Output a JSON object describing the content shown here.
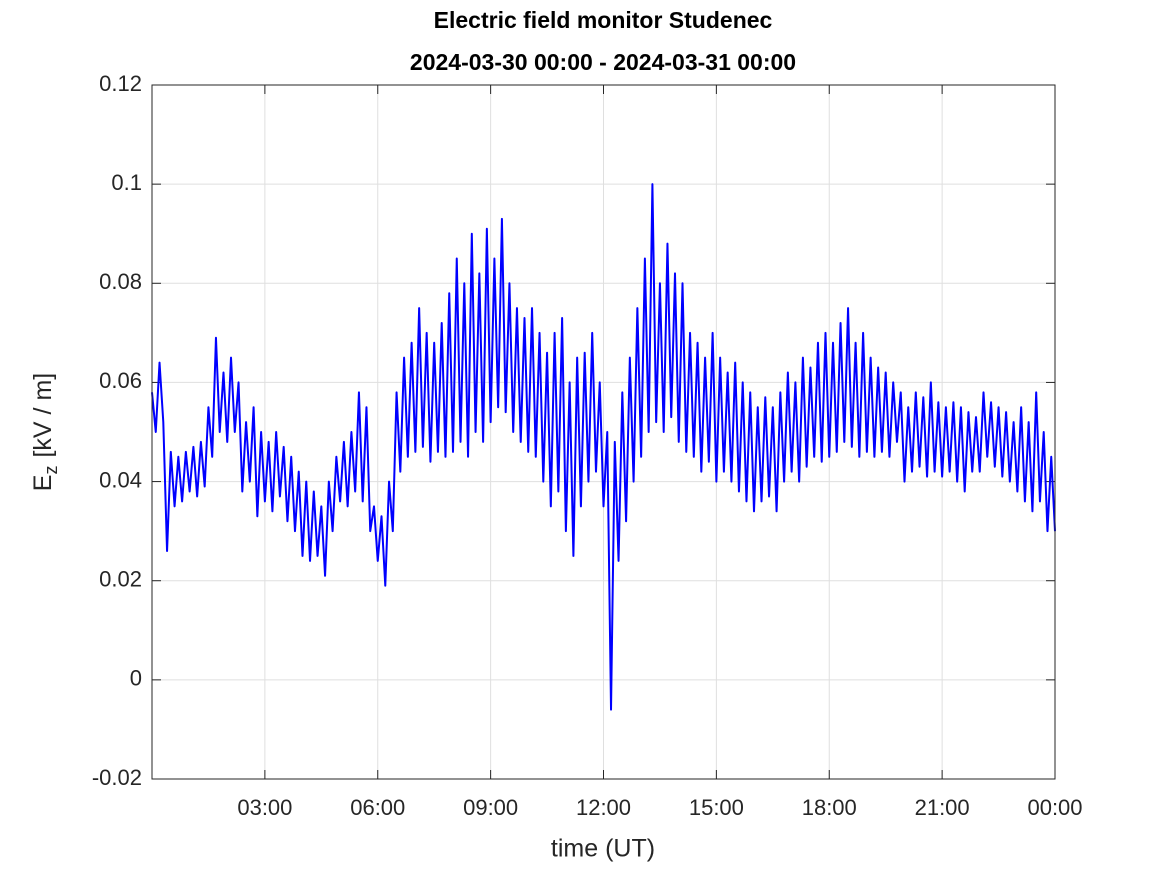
{
  "chart_data": {
    "type": "line",
    "title": "Electric field monitor Studenec",
    "subtitle": "2024-03-30 00:00 - 2024-03-31 00:00",
    "xlabel": "time (UT)",
    "ylabel": [
      "E",
      "z",
      "[kV / m]"
    ],
    "xlim": [
      0,
      24
    ],
    "xticks": [
      {
        "value": 3,
        "label": "03:00"
      },
      {
        "value": 6,
        "label": "06:00"
      },
      {
        "value": 9,
        "label": "09:00"
      },
      {
        "value": 12,
        "label": "12:00"
      },
      {
        "value": 15,
        "label": "15:00"
      },
      {
        "value": 18,
        "label": "18:00"
      },
      {
        "value": 21,
        "label": "21:00"
      },
      {
        "value": 24,
        "label": "00:00"
      }
    ],
    "ylim": [
      -0.02,
      0.12
    ],
    "yticks": [
      -0.02,
      0,
      0.02,
      0.04,
      0.06,
      0.08,
      0.1,
      0.12
    ],
    "grid": true,
    "x": [
      0,
      0.1,
      0.2,
      0.3,
      0.4,
      0.5,
      0.6,
      0.7,
      0.8,
      0.9,
      1,
      1.1,
      1.2,
      1.3,
      1.4,
      1.5,
      1.6,
      1.7,
      1.8,
      1.9,
      2,
      2.1,
      2.2,
      2.3,
      2.4,
      2.5,
      2.6,
      2.7,
      2.8,
      2.9,
      3,
      3.1,
      3.2,
      3.3,
      3.4,
      3.5,
      3.6,
      3.7,
      3.8,
      3.9,
      4,
      4.1,
      4.2,
      4.3,
      4.4,
      4.5,
      4.6,
      4.7,
      4.8,
      4.9,
      5,
      5.1,
      5.2,
      5.3,
      5.4,
      5.5,
      5.6,
      5.7,
      5.8,
      5.9,
      6,
      6.1,
      6.2,
      6.3,
      6.4,
      6.5,
      6.6,
      6.7,
      6.8,
      6.9,
      7,
      7.1,
      7.2,
      7.3,
      7.4,
      7.5,
      7.6,
      7.7,
      7.8,
      7.9,
      8,
      8.1,
      8.2,
      8.3,
      8.4,
      8.5,
      8.6,
      8.7,
      8.8,
      8.9,
      9,
      9.1,
      9.2,
      9.3,
      9.4,
      9.5,
      9.6,
      9.7,
      9.8,
      9.9,
      10,
      10.1,
      10.2,
      10.3,
      10.4,
      10.5,
      10.6,
      10.7,
      10.8,
      10.9,
      11,
      11.1,
      11.2,
      11.3,
      11.4,
      11.5,
      11.6,
      11.7,
      11.8,
      11.9,
      12,
      12.1,
      12.2,
      12.3,
      12.4,
      12.5,
      12.6,
      12.7,
      12.8,
      12.9,
      13,
      13.1,
      13.2,
      13.3,
      13.4,
      13.5,
      13.6,
      13.7,
      13.8,
      13.9,
      14,
      14.1,
      14.2,
      14.3,
      14.4,
      14.5,
      14.6,
      14.7,
      14.8,
      14.9,
      15,
      15.1,
      15.2,
      15.3,
      15.4,
      15.5,
      15.6,
      15.7,
      15.8,
      15.9,
      16,
      16.1,
      16.2,
      16.3,
      16.4,
      16.5,
      16.6,
      16.7,
      16.8,
      16.9,
      17,
      17.1,
      17.2,
      17.3,
      17.4,
      17.5,
      17.6,
      17.7,
      17.8,
      17.9,
      18,
      18.1,
      18.2,
      18.3,
      18.4,
      18.5,
      18.6,
      18.7,
      18.8,
      18.9,
      19,
      19.1,
      19.2,
      19.3,
      19.4,
      19.5,
      19.6,
      19.7,
      19.8,
      19.9,
      20,
      20.1,
      20.2,
      20.3,
      20.4,
      20.5,
      20.6,
      20.7,
      20.8,
      20.9,
      21,
      21.1,
      21.2,
      21.3,
      21.4,
      21.5,
      21.6,
      21.7,
      21.8,
      21.9,
      22,
      22.1,
      22.2,
      22.3,
      22.4,
      22.5,
      22.6,
      22.7,
      22.8,
      22.9,
      23,
      23.1,
      23.2,
      23.3,
      23.4,
      23.5,
      23.6,
      23.7,
      23.8,
      23.9,
      24
    ],
    "series": [
      {
        "color": "#0000ff",
        "values": [
          0.058,
          0.05,
          0.064,
          0.052,
          0.026,
          0.046,
          0.035,
          0.045,
          0.036,
          0.046,
          0.038,
          0.047,
          0.037,
          0.048,
          0.039,
          0.055,
          0.045,
          0.069,
          0.05,
          0.062,
          0.048,
          0.065,
          0.05,
          0.06,
          0.038,
          0.052,
          0.04,
          0.055,
          0.033,
          0.05,
          0.036,
          0.048,
          0.034,
          0.05,
          0.037,
          0.047,
          0.032,
          0.045,
          0.03,
          0.042,
          0.025,
          0.04,
          0.024,
          0.038,
          0.025,
          0.035,
          0.021,
          0.04,
          0.03,
          0.045,
          0.036,
          0.048,
          0.035,
          0.05,
          0.038,
          0.058,
          0.036,
          0.055,
          0.03,
          0.035,
          0.024,
          0.033,
          0.019,
          0.04,
          0.03,
          0.058,
          0.042,
          0.065,
          0.045,
          0.068,
          0.046,
          0.075,
          0.047,
          0.07,
          0.044,
          0.068,
          0.046,
          0.072,
          0.045,
          0.078,
          0.046,
          0.085,
          0.048,
          0.08,
          0.045,
          0.09,
          0.05,
          0.082,
          0.048,
          0.091,
          0.052,
          0.085,
          0.055,
          0.093,
          0.054,
          0.08,
          0.05,
          0.075,
          0.048,
          0.073,
          0.046,
          0.075,
          0.045,
          0.07,
          0.04,
          0.066,
          0.035,
          0.07,
          0.038,
          0.073,
          0.03,
          0.06,
          0.025,
          0.065,
          0.035,
          0.066,
          0.04,
          0.07,
          0.042,
          0.06,
          0.035,
          0.05,
          -0.006,
          0.048,
          0.024,
          0.058,
          0.032,
          0.065,
          0.04,
          0.075,
          0.045,
          0.085,
          0.05,
          0.1,
          0.052,
          0.08,
          0.05,
          0.088,
          0.053,
          0.082,
          0.048,
          0.08,
          0.046,
          0.07,
          0.045,
          0.068,
          0.042,
          0.065,
          0.044,
          0.07,
          0.04,
          0.065,
          0.042,
          0.062,
          0.04,
          0.064,
          0.038,
          0.06,
          0.036,
          0.058,
          0.034,
          0.055,
          0.036,
          0.057,
          0.037,
          0.055,
          0.034,
          0.058,
          0.04,
          0.062,
          0.042,
          0.06,
          0.04,
          0.065,
          0.043,
          0.063,
          0.045,
          0.068,
          0.044,
          0.07,
          0.045,
          0.068,
          0.046,
          0.072,
          0.048,
          0.075,
          0.047,
          0.068,
          0.045,
          0.07,
          0.046,
          0.065,
          0.045,
          0.063,
          0.046,
          0.062,
          0.045,
          0.06,
          0.048,
          0.058,
          0.04,
          0.055,
          0.042,
          0.058,
          0.043,
          0.057,
          0.041,
          0.06,
          0.042,
          0.056,
          0.041,
          0.055,
          0.042,
          0.056,
          0.04,
          0.055,
          0.038,
          0.054,
          0.042,
          0.053,
          0.042,
          0.058,
          0.045,
          0.056,
          0.043,
          0.055,
          0.041,
          0.054,
          0.04,
          0.052,
          0.038,
          0.055,
          0.036,
          0.052,
          0.034,
          0.058,
          0.036,
          0.05,
          0.03,
          0.045,
          0.03
        ]
      }
    ]
  }
}
